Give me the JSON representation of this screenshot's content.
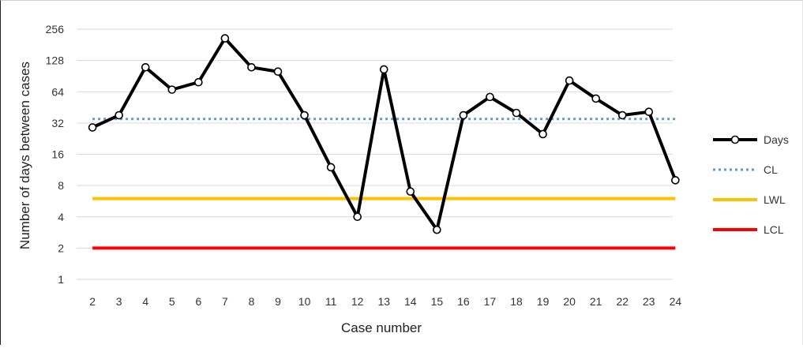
{
  "chart_data": {
    "type": "line",
    "title": "",
    "xlabel": "Case number",
    "ylabel": "Number of days between cases",
    "y_scale": "log2",
    "ylim": [
      1,
      256
    ],
    "yticks": [
      "1",
      "2",
      "4",
      "8",
      "16",
      "32",
      "64",
      "128",
      "256"
    ],
    "categories": [
      "2",
      "3",
      "4",
      "5",
      "6",
      "7",
      "8",
      "9",
      "10",
      "11",
      "12",
      "13",
      "14",
      "15",
      "16",
      "17",
      "18",
      "19",
      "20",
      "21",
      "22",
      "23",
      "24"
    ],
    "grid": true,
    "legend_position": "right",
    "series": [
      {
        "name": "Days",
        "type": "line-markers",
        "color": "#000000",
        "values": [
          29,
          38,
          110,
          67,
          79,
          209,
          110,
          100,
          38,
          12,
          4,
          105,
          7,
          3,
          38,
          57,
          40,
          25,
          82,
          55,
          38,
          41,
          9
        ]
      },
      {
        "name": "CL",
        "type": "reference-dotted",
        "color": "#5b9bd5",
        "value": 35
      },
      {
        "name": "LWL",
        "type": "reference",
        "color": "#ffc000",
        "value": 6
      },
      {
        "name": "LCL",
        "type": "reference",
        "color": "#ff0000",
        "value": 2
      }
    ]
  }
}
